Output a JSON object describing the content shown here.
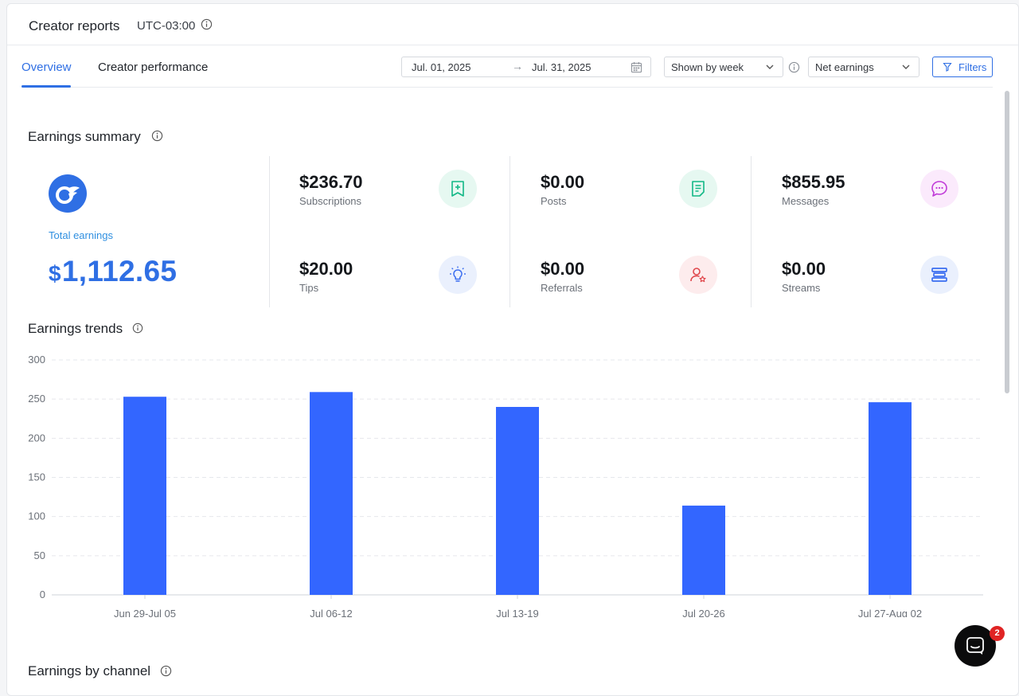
{
  "header": {
    "title": "Creator reports",
    "timezone": "UTC-03:00"
  },
  "tabs": [
    {
      "label": "Overview",
      "active": true
    },
    {
      "label": "Creator performance",
      "active": false
    }
  ],
  "date_range": {
    "start": "Jul. 01, 2025",
    "end": "Jul. 31, 2025"
  },
  "grouping_select": {
    "value": "Shown by week"
  },
  "metric_select": {
    "value": "Net earnings"
  },
  "filters_button": {
    "label": "Filters"
  },
  "earnings_summary": {
    "title": "Earnings summary",
    "total_label": "Total earnings",
    "total_currency": "$",
    "total_value": "1,112.65",
    "metrics": [
      {
        "key": "subscriptions",
        "value": "$236.70",
        "label": "Subscriptions",
        "icon": "bookmark-plus-icon",
        "color": "#12b886"
      },
      {
        "key": "posts",
        "value": "$0.00",
        "label": "Posts",
        "icon": "document-icon",
        "color": "#12b886"
      },
      {
        "key": "messages",
        "value": "$855.95",
        "label": "Messages",
        "icon": "chat-bubble-icon",
        "color": "#c03ad8"
      },
      {
        "key": "tips",
        "value": "$20.00",
        "label": "Tips",
        "icon": "lightbulb-icon",
        "color": "#3b6ef0"
      },
      {
        "key": "referrals",
        "value": "$0.00",
        "label": "Referrals",
        "icon": "user-star-icon",
        "color": "#e0474c"
      },
      {
        "key": "streams",
        "value": "$0.00",
        "label": "Streams",
        "icon": "streams-icon",
        "color": "#3b6ef0"
      }
    ]
  },
  "earnings_trends": {
    "title": "Earnings trends"
  },
  "earnings_by_channel": {
    "title": "Earnings by channel"
  },
  "chat": {
    "badge_count": "2"
  },
  "colors": {
    "accent": "#2f6fe4",
    "bar": "#3366ff"
  },
  "chart_data": {
    "type": "bar",
    "categories": [
      "Jun 29-Jul 05",
      "Jul 06-12",
      "Jul 13-19",
      "Jul 20-26",
      "Jul 27-Aug 02"
    ],
    "values": [
      253,
      259,
      240,
      114,
      246
    ],
    "title": "",
    "xlabel": "",
    "ylabel": "",
    "ylim": [
      0,
      300
    ],
    "yticks": [
      0,
      50,
      100,
      150,
      200,
      250,
      300
    ],
    "grid": true,
    "legend": "none"
  }
}
